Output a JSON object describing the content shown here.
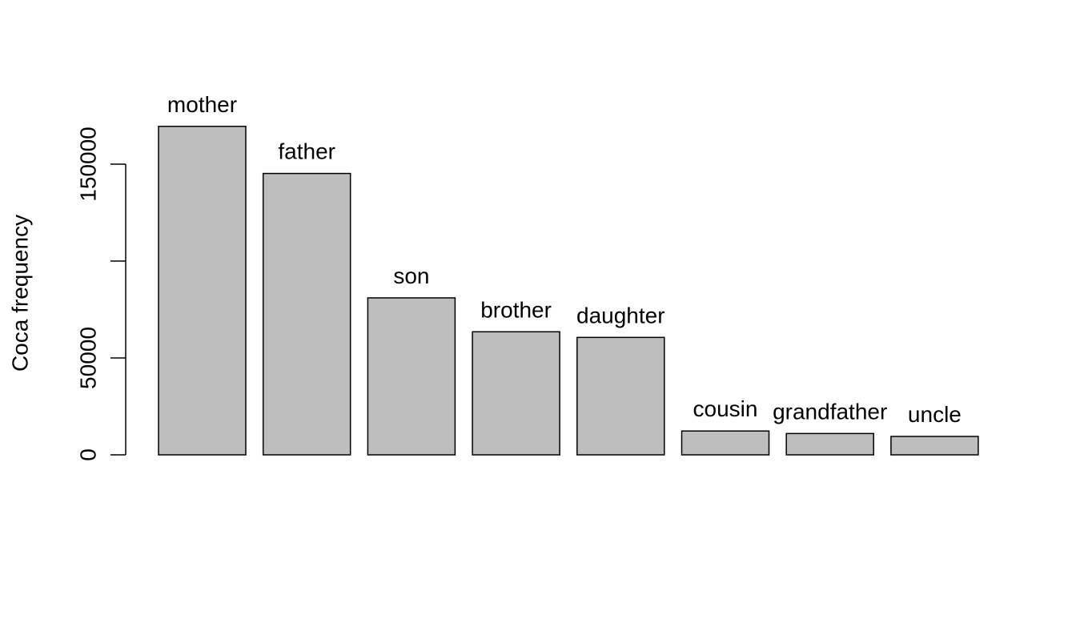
{
  "chart_data": {
    "type": "bar",
    "categories": [
      "mother",
      "father",
      "son",
      "brother",
      "daughter",
      "cousin",
      "grandfather",
      "uncle"
    ],
    "values": [
      169500,
      145200,
      81000,
      63500,
      60600,
      12300,
      11000,
      9500
    ],
    "title": "",
    "xlabel": "",
    "ylabel": "Coca frequency",
    "ylim": [
      0,
      169500
    ],
    "yticks": [
      0,
      50000,
      150000
    ],
    "ytick_marks": [
      0,
      50000,
      100000,
      150000
    ],
    "grid": false,
    "bar_color": "#bebebe",
    "bar_outline_color": "#000000"
  }
}
